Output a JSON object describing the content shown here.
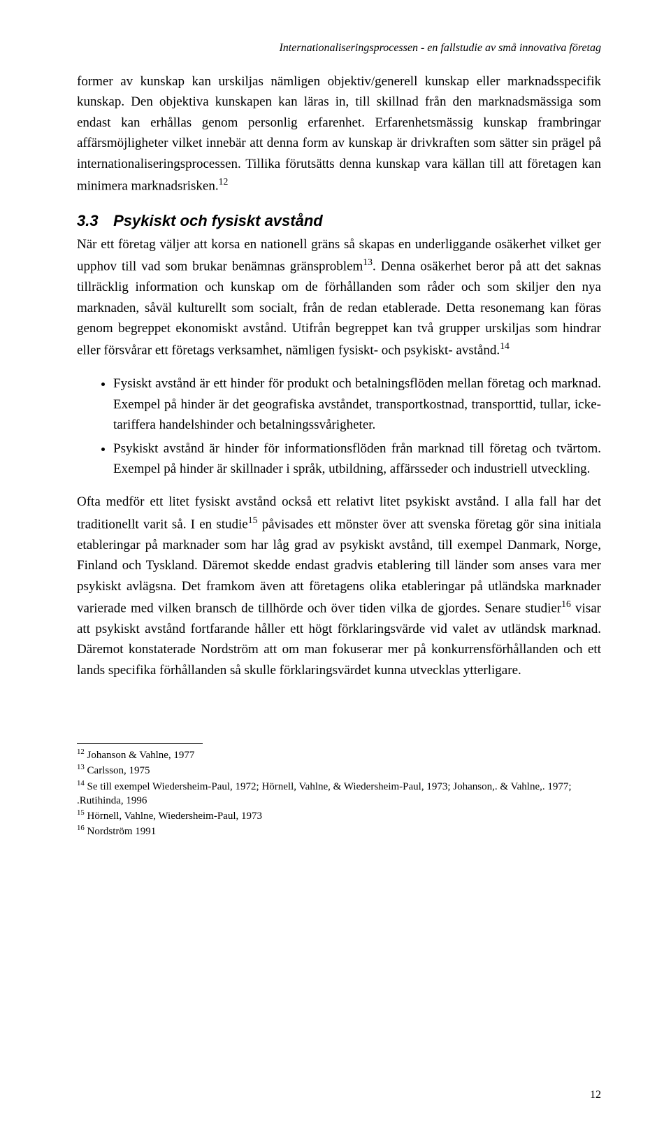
{
  "header": {
    "running_title": "Internationaliseringsprocessen - en fallstudie av små innovativa företag"
  },
  "paragraphs": {
    "p1": "former av kunskap kan urskiljas nämligen objektiv/generell kunskap eller marknadsspecifik kunskap. Den objektiva kunskapen kan läras in, till skillnad från den marknadsmässiga som endast kan erhållas genom personlig erfarenhet. Erfarenhetsmässig kunskap frambringar affärsmöjligheter vilket innebär att denna form av kunskap är drivkraften som sätter sin prägel på internationaliseringsprocessen. Tillika förutsätts denna kunskap vara källan till att företagen kan minimera marknadsrisken.",
    "p1_sup": "12",
    "p2": "När ett företag väljer att korsa en nationell gräns så skapas en underliggande osäkerhet vilket ger upphov till vad som brukar benämnas gränsproblem",
    "p2_sup": "13",
    "p2b": ". Denna osäkerhet beror på att det saknas tillräcklig information och kunskap om de förhållanden som råder och som skiljer den nya marknaden, såväl kulturellt som socialt, från de redan etablerade. Detta resonemang kan föras genom begreppet ekonomiskt avstånd. Utifrån begreppet kan två grupper urskiljas som hindrar eller försvårar ett företags verksamhet, nämligen fysiskt- och psykiskt- avstånd.",
    "p2b_sup": "14",
    "p3": "Ofta medför ett litet fysiskt avstånd också ett relativt litet psykiskt avstånd. I alla fall har det traditionellt varit så. I en studie",
    "p3_sup": "15",
    "p3b": " påvisades ett mönster över att svenska företag gör sina initiala etableringar på marknader som har låg grad av psykiskt avstånd, till exempel Danmark, Norge, Finland och Tyskland. Däremot skedde endast gradvis etablering till länder som anses vara mer psykiskt avlägsna. Det framkom även att företagens olika etableringar på utländska marknader varierade med vilken bransch de tillhörde och över tiden vilka de gjordes. Senare studier",
    "p3b_sup": "16",
    "p3c": " visar att psykiskt avstånd fortfarande håller ett högt förklaringsvärde vid valet av utländsk marknad. Däremot konstaterade Nordström att om man fokuserar mer på konkurrensförhållanden och ett lands specifika förhållanden så skulle förklaringsvärdet kunna utvecklas ytterligare."
  },
  "section": {
    "number": "3.3",
    "title": "Psykiskt och fysiskt avstånd"
  },
  "bullets": [
    "Fysiskt avstånd är ett hinder för produkt och betalningsflöden mellan företag och marknad. Exempel på hinder är det geografiska avståndet, transportkostnad, transporttid, tullar, icke- tariffera handelshinder och betalningssvårigheter.",
    "Psykiskt avstånd är hinder för informationsflöden från marknad till företag och tvärtom. Exempel på hinder är skillnader i språk, utbildning, affärsseder och industriell utveckling."
  ],
  "footnotes": [
    {
      "num": "12",
      "text": " Johanson & Vahlne, 1977"
    },
    {
      "num": "13",
      "text": " Carlsson, 1975"
    },
    {
      "num": "14",
      "text": " Se till exempel Wiedersheim-Paul, 1972; Hörnell, Vahlne, & Wiedersheim-Paul, 1973; Johanson,. & Vahlne,. 1977; .Rutihinda, 1996"
    },
    {
      "num": "15",
      "text": " Hörnell, Vahlne, Wiedersheim-Paul, 1973"
    },
    {
      "num": "16",
      "text": " Nordström 1991"
    }
  ],
  "page_number": "12"
}
